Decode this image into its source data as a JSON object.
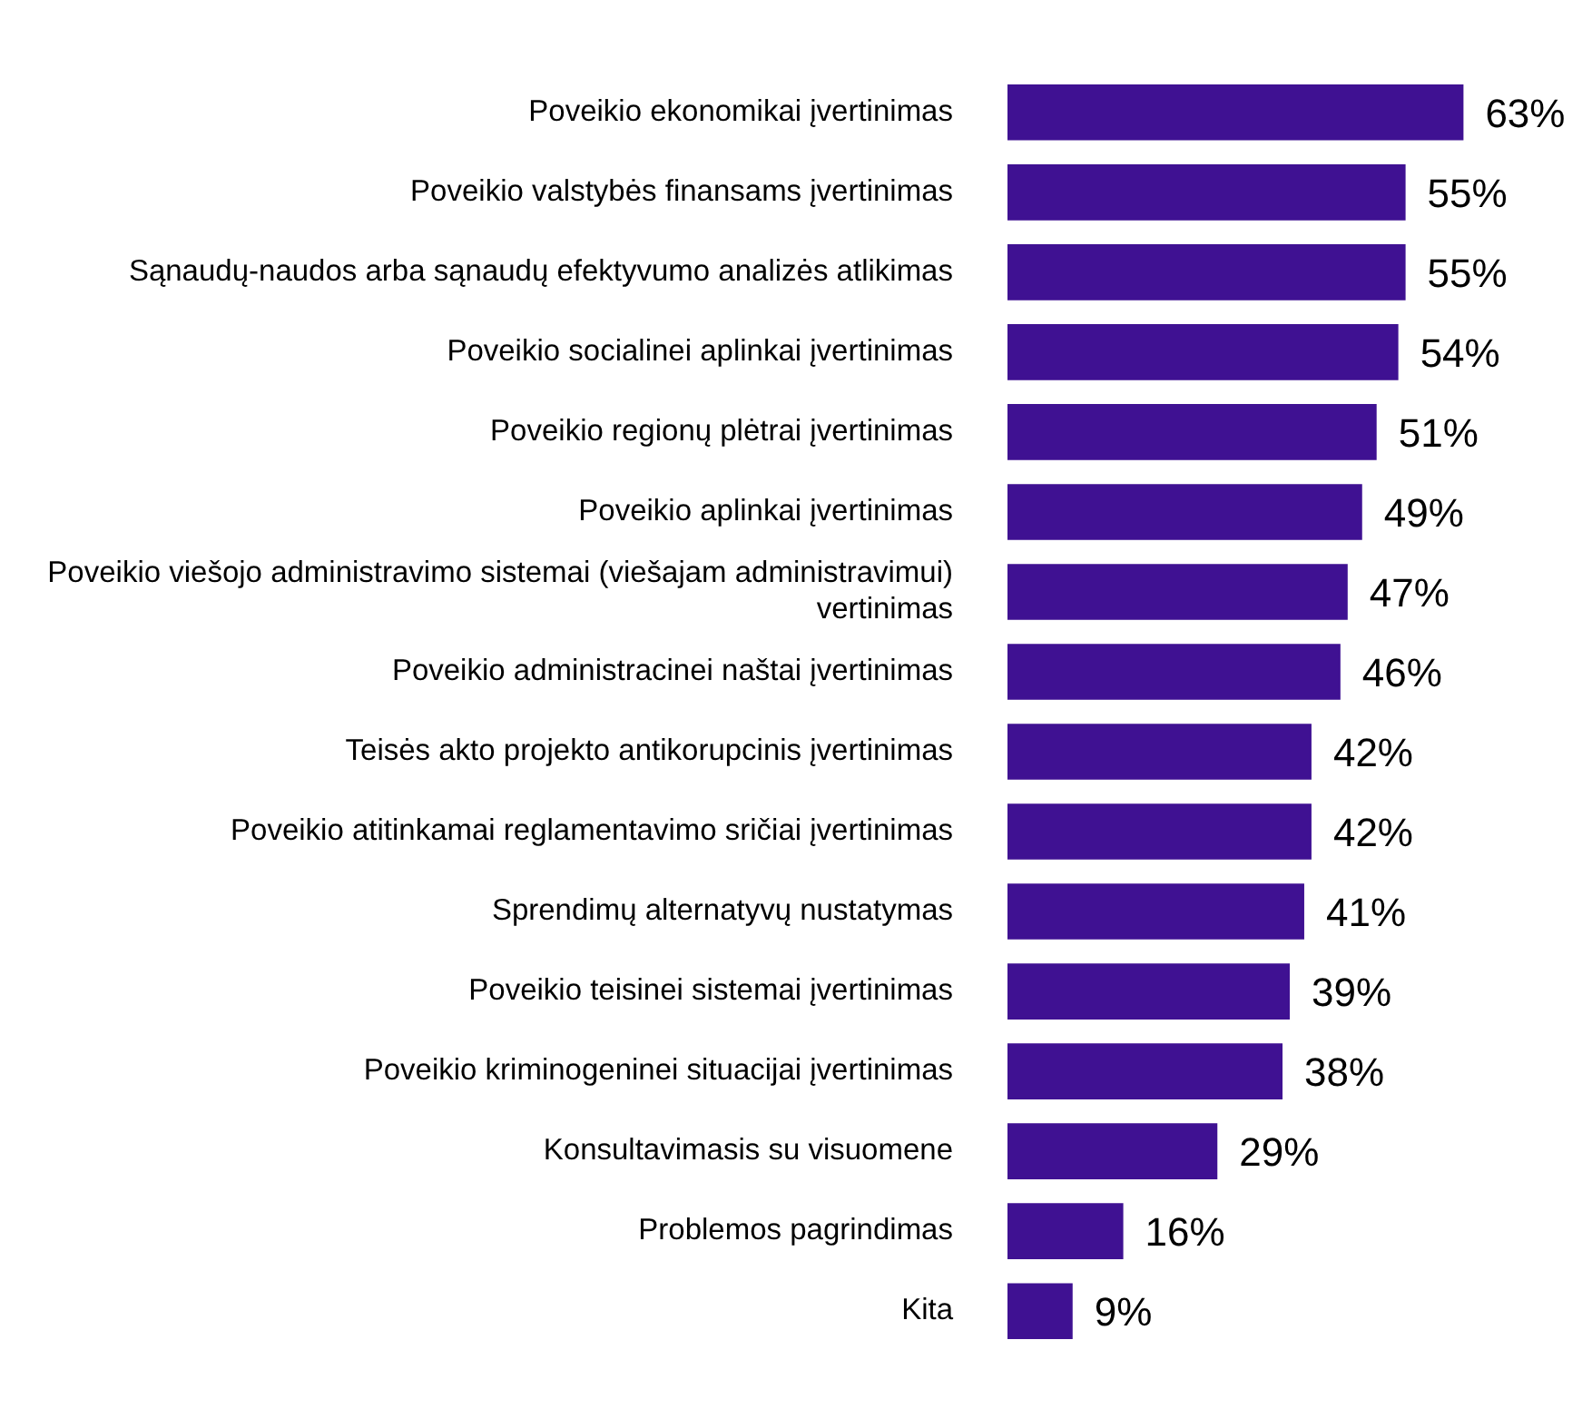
{
  "chart_data": {
    "type": "bar",
    "orientation": "horizontal",
    "categories": [
      "Poveikio ekonomikai įvertinimas",
      "Poveikio valstybės finansams įvertinimas",
      "Sąnaudų-naudos arba sąnaudų efektyvumo analizės atlikimas",
      "Poveikio socialinei aplinkai įvertinimas",
      "Poveikio regionų plėtrai įvertinimas",
      "Poveikio aplinkai įvertinimas",
      "Poveikio viešojo administravimo sistemai (viešajam administravimui) vertinimas",
      "Poveikio administracinei naštai įvertinimas",
      "Teisės akto projekto antikorupcinis įvertinimas",
      "Poveikio atitinkamai reglamentavimo sričiai įvertinimas",
      "Sprendimų alternatyvų nustatymas",
      "Poveikio teisinei sistemai įvertinimas",
      "Poveikio kriminogeninei situacijai įvertinimas",
      "Konsultavimasis su visuomene",
      "Problemos pagrindimas",
      "Kita"
    ],
    "values": [
      63,
      55,
      55,
      54,
      51,
      49,
      47,
      46,
      42,
      42,
      41,
      39,
      38,
      29,
      16,
      9
    ],
    "value_labels": [
      "63%",
      "55%",
      "55%",
      "54%",
      "51%",
      "49%",
      "47%",
      "46%",
      "42%",
      "42%",
      "41%",
      "39%",
      "38%",
      "29%",
      "16%",
      "9%"
    ],
    "color": "#3f1192",
    "legend": false
  }
}
